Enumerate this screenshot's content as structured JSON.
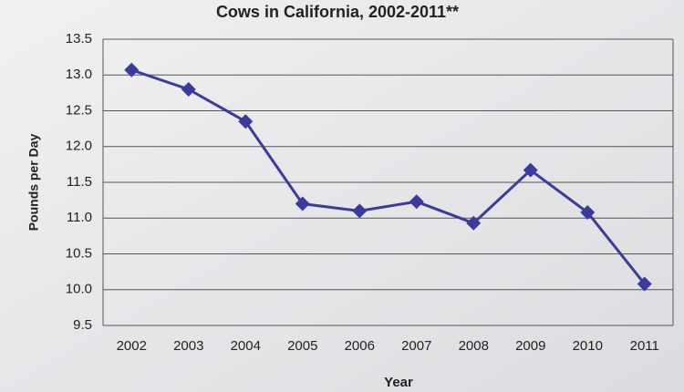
{
  "chart_data": {
    "type": "line",
    "title": "Cows in California, 2002-2011**",
    "x_label": "Year",
    "y_label": "Pounds per Day",
    "categories": [
      "2002",
      "2003",
      "2004",
      "2005",
      "2006",
      "2007",
      "2008",
      "2009",
      "2010",
      "2011"
    ],
    "series": [
      {
        "name": "Pounds per Day",
        "color": "#3b3b9e",
        "values": [
          13.07,
          12.8,
          12.35,
          11.2,
          11.1,
          11.23,
          10.93,
          11.67,
          11.08,
          10.08
        ]
      }
    ],
    "ylim": [
      9.5,
      13.5
    ],
    "yticks": [
      9.5,
      {
        "value": 10,
        "label": "10.0"
      },
      10.5,
      {
        "value": 11,
        "label": "11.0"
      },
      11.5,
      {
        "value": 12,
        "label": "12.0"
      },
      12.5,
      {
        "value": 13,
        "label": "13.0"
      },
      13.5
    ],
    "grid": true
  }
}
